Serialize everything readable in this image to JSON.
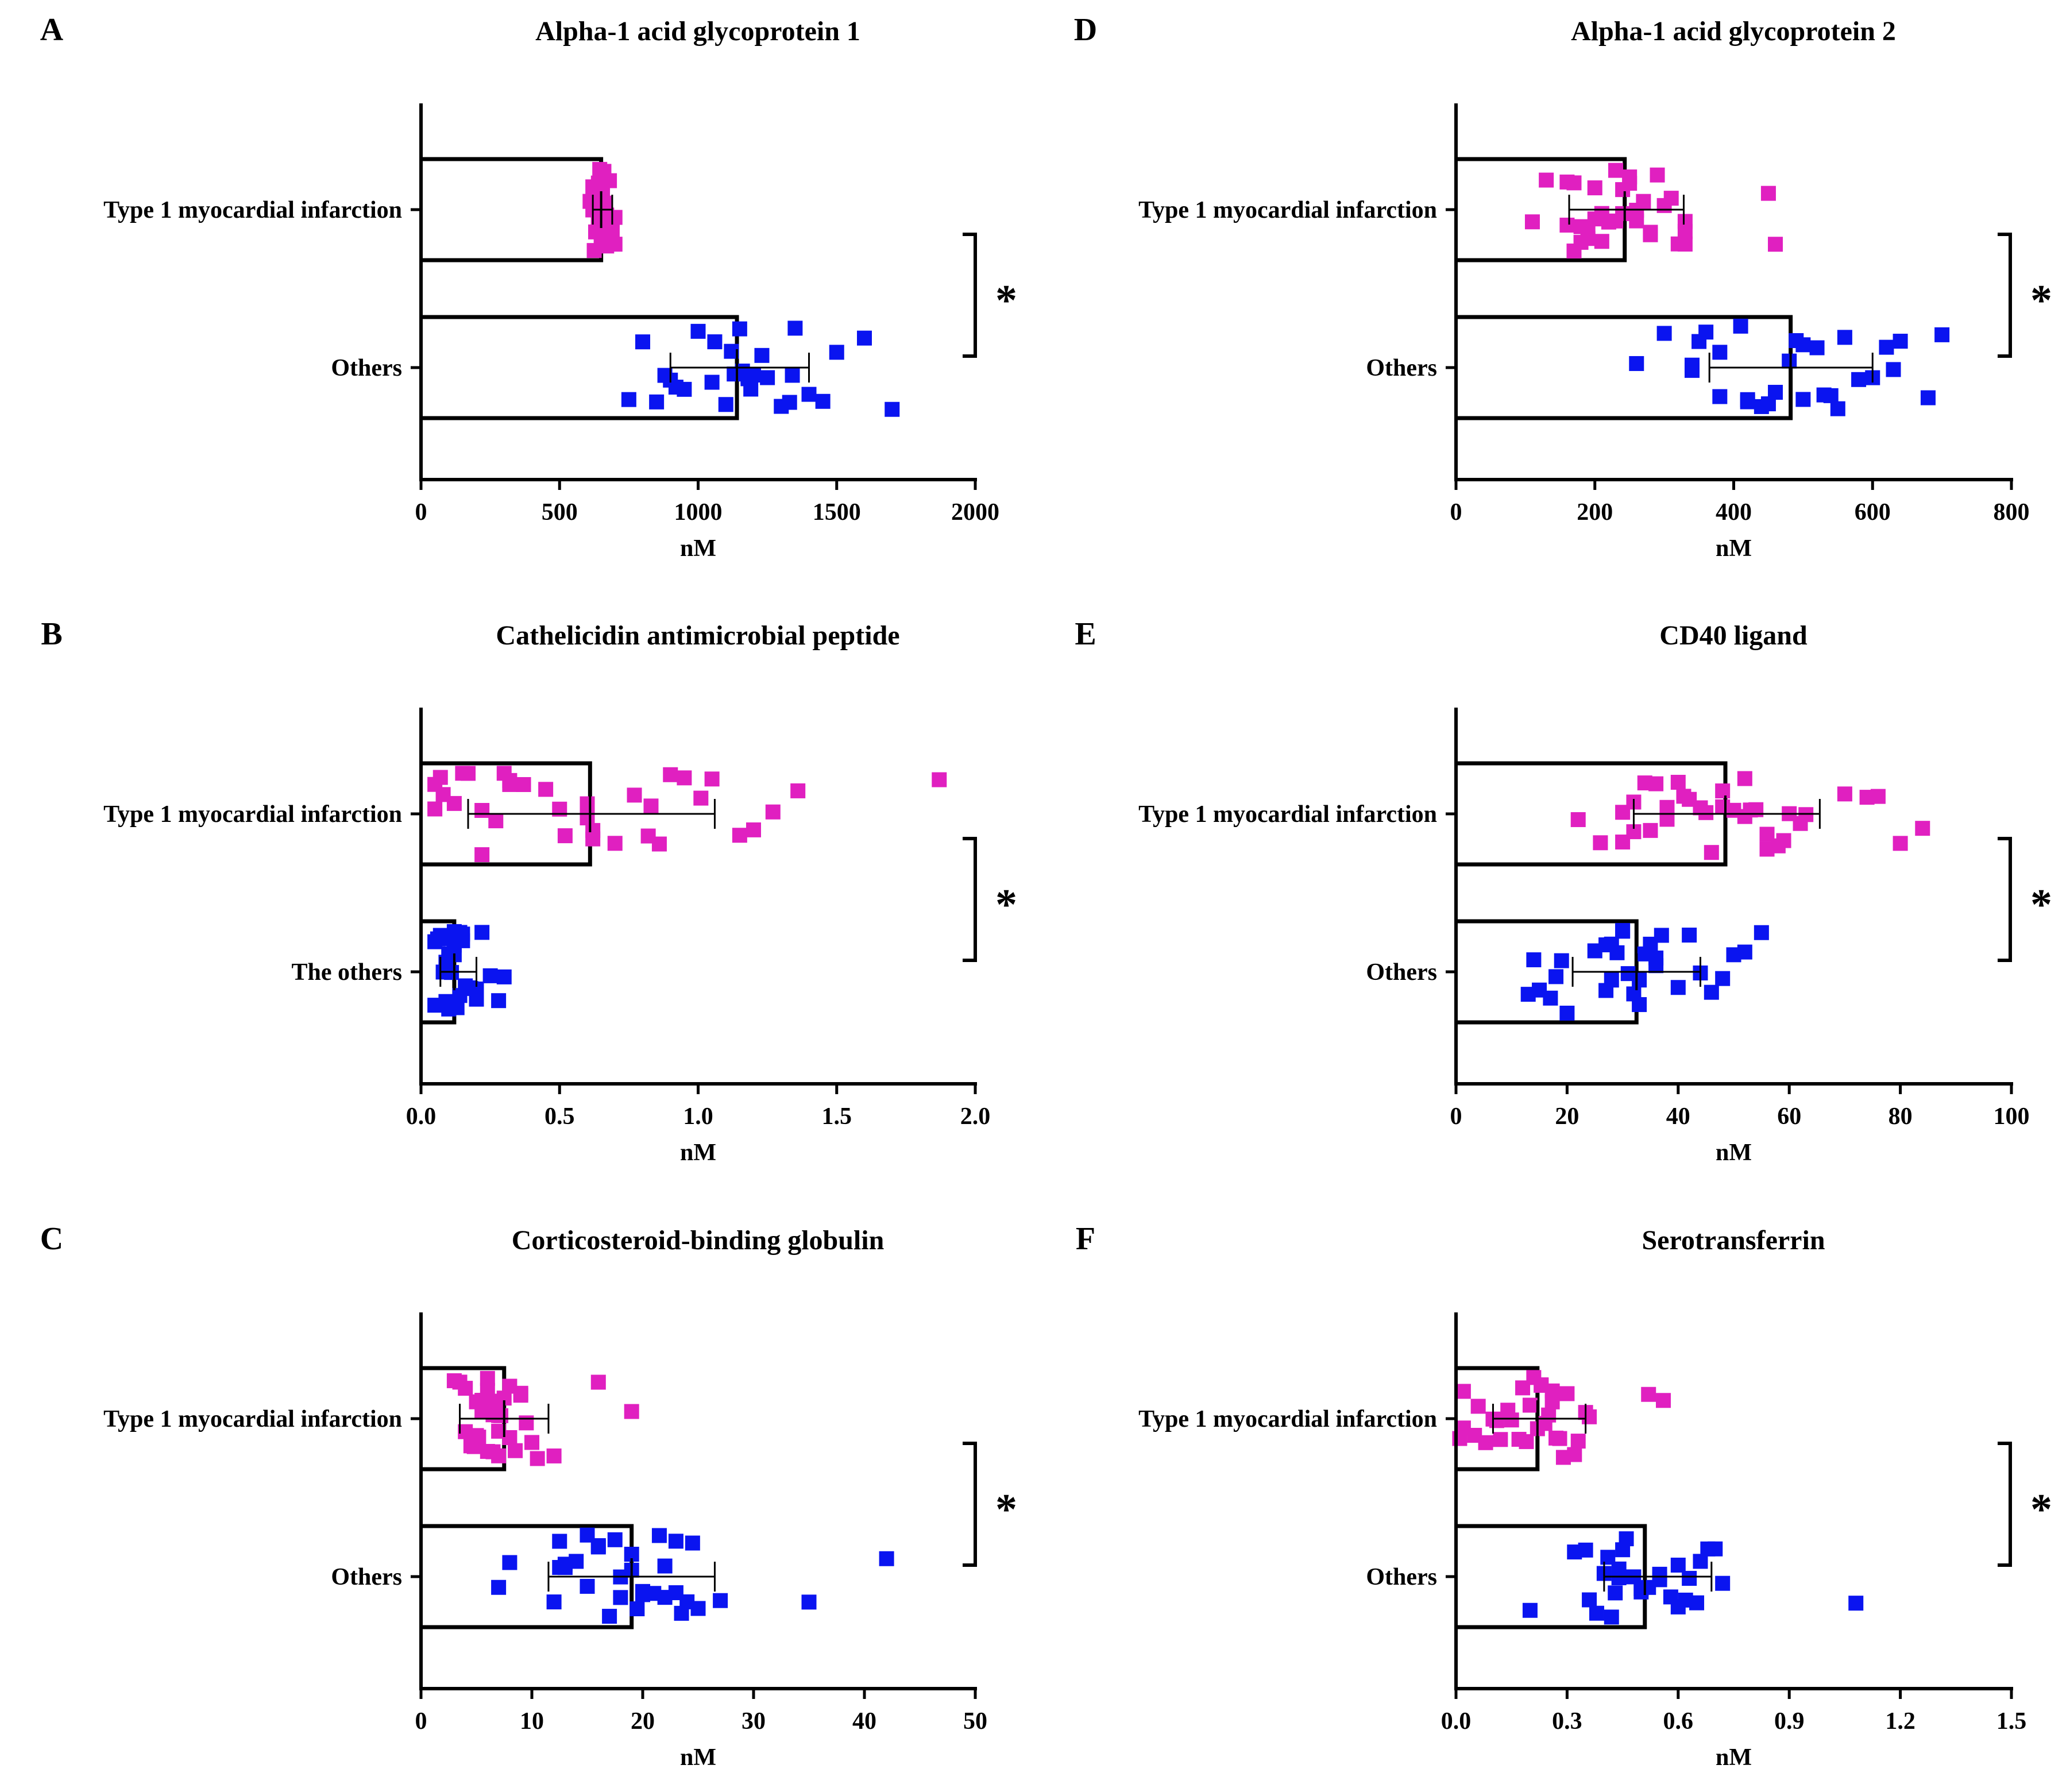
{
  "figure": {
    "colors": {
      "group1": "#e020c0",
      "group2": "#0a14f0",
      "axis": "#000000",
      "bar": "#000000"
    }
  },
  "chart_data": [
    {
      "panel": "A",
      "type": "bar",
      "orientation": "horizontal",
      "title": "Alpha-1 acid glycoprotein 1",
      "xlabel": "nM",
      "xlim": [
        0,
        2000
      ],
      "xticks": [
        "0",
        "500",
        "1000",
        "1500",
        "2000"
      ],
      "xtick_values": [
        0,
        500,
        1000,
        1500,
        2000
      ],
      "significance": "*",
      "groups": [
        {
          "label": "Type 1 myocardial infarction",
          "color": "#e020c0",
          "mean": 650,
          "sd": [
            620,
            690
          ],
          "points": [
            640,
            660,
            670,
            650,
            630,
            680,
            690,
            620,
            660,
            650,
            645,
            700,
            640,
            610,
            670,
            655,
            665,
            635,
            625,
            675,
            685,
            650,
            660,
            640,
            670,
            620,
            630,
            680,
            700,
            655
          ]
        },
        {
          "label": "Others",
          "color": "#0a14f0",
          "mean": 1140,
          "sd": [
            900,
            1400
          ],
          "points": [
            1200,
            1150,
            1230,
            750,
            800,
            850,
            900,
            950,
            1000,
            1050,
            1100,
            1130,
            1160,
            1180,
            1250,
            1300,
            1330,
            1350,
            1400,
            1450,
            1500,
            1600,
            1700,
            880,
            920,
            1180,
            1190,
            1340,
            1120,
            1060
          ]
        }
      ]
    },
    {
      "panel": "B",
      "type": "bar",
      "orientation": "horizontal",
      "title": "Cathelicidin antimicrobial peptide",
      "xlabel": "nM",
      "xlim": [
        0,
        2
      ],
      "xticks": [
        "0.0",
        "0.5",
        "1.0",
        "1.5",
        "2.0"
      ],
      "xtick_values": [
        0,
        0.5,
        1,
        1.5,
        2
      ],
      "significance": "*",
      "groups": [
        {
          "label": "Type 1 myocardial infarction",
          "color": "#e020c0",
          "mean": 0.61,
          "sd": [
            0.17,
            1.06
          ],
          "points": [
            0.08,
            0.22,
            0.32,
            0.5,
            0.62,
            0.83,
            1.01,
            0.05,
            0.12,
            0.22,
            0.3,
            0.45,
            0.6,
            0.7,
            0.82,
            0.9,
            1.05,
            1.15,
            1.27,
            1.36,
            1.87,
            0.07,
            0.17,
            0.27,
            0.37,
            0.52,
            0.62,
            0.77,
            0.95,
            1.2,
            0.05,
            0.15,
            0.32,
            0.6,
            0.86
          ]
        },
        {
          "label": "The others",
          "color": "#0a14f0",
          "mean": 0.12,
          "sd": [
            0.07,
            0.2
          ],
          "points": [
            0.05,
            0.08,
            0.1,
            0.12,
            0.15,
            0.18,
            0.2,
            0.22,
            0.25,
            0.28,
            0.3,
            0.06,
            0.09,
            0.11,
            0.13,
            0.16,
            0.08,
            0.1,
            0.12,
            0.14,
            0.2,
            0.05,
            0.07,
            0.09,
            0.11,
            0.15,
            0.17,
            0.1,
            0.12,
            0.14
          ]
        }
      ]
    },
    {
      "panel": "C",
      "type": "bar",
      "orientation": "horizontal",
      "title": "Corticosteroid-binding globulin",
      "xlabel": "nM",
      "xlim": [
        0,
        50
      ],
      "xticks": [
        "0",
        "10",
        "20",
        "30",
        "40",
        "50"
      ],
      "xtick_values": [
        0,
        10,
        20,
        30,
        40,
        50
      ],
      "significance": "*",
      "groups": [
        {
          "label": "Type 1 myocardial infarction",
          "color": "#e020c0",
          "mean": 7.5,
          "sd": [
            3.5,
            11.5
          ],
          "points": [
            3,
            4,
            5,
            6,
            7,
            8,
            9,
            10,
            12,
            16,
            19,
            3.5,
            4.5,
            5.5,
            6.5,
            7.5,
            8.5,
            9.5,
            6,
            7,
            5,
            4,
            6.5,
            8,
            7,
            5.5,
            6,
            7.2,
            6.8,
            5.2,
            4.8,
            9,
            10.5
          ]
        },
        {
          "label": "Others",
          "color": "#0a14f0",
          "mean": 19,
          "sd": [
            11.5,
            26.5
          ],
          "points": [
            7,
            8,
            12,
            13,
            14,
            15,
            16,
            17,
            18,
            19,
            20,
            21,
            22,
            23,
            24,
            25,
            27,
            35,
            42,
            12.5,
            13,
            19,
            20,
            22,
            23,
            24.5,
            12.5,
            15,
            17.5,
            19.5,
            21.5,
            23.5,
            18,
            16
          ]
        }
      ]
    },
    {
      "panel": "D",
      "type": "bar",
      "orientation": "horizontal",
      "title": "Alpha-1 acid glycoprotein 2",
      "xlabel": "nM",
      "xlim": [
        0,
        800
      ],
      "xticks": [
        "0",
        "200",
        "400",
        "600",
        "800"
      ],
      "xtick_values": [
        0,
        200,
        400,
        600,
        800
      ],
      "significance": "*",
      "groups": [
        {
          "label": "Type 1 myocardial infarction",
          "color": "#e020c0",
          "mean": 243,
          "sd": [
            163,
            328
          ],
          "points": [
            110,
            130,
            160,
            170,
            180,
            190,
            200,
            210,
            220,
            230,
            240,
            250,
            260,
            270,
            280,
            290,
            300,
            320,
            330,
            450,
            460,
            170,
            200,
            230,
            260,
            280,
            330,
            160,
            180,
            210,
            250,
            310,
            330,
            190,
            240
          ]
        },
        {
          "label": "Others",
          "color": "#0a14f0",
          "mean": 482,
          "sd": [
            365,
            600
          ],
          "points": [
            260,
            300,
            340,
            360,
            380,
            420,
            440,
            460,
            480,
            500,
            520,
            540,
            560,
            580,
            600,
            620,
            640,
            680,
            700,
            340,
            380,
            450,
            500,
            530,
            350,
            420,
            490,
            550,
            630,
            410
          ]
        }
      ]
    },
    {
      "panel": "E",
      "type": "bar",
      "orientation": "horizontal",
      "title": "CD40 ligand",
      "xlabel": "nM",
      "xlim": [
        0,
        100
      ],
      "xticks": [
        "0",
        "20",
        "40",
        "60",
        "80",
        "100"
      ],
      "xtick_values": [
        0,
        20,
        40,
        60,
        80,
        100
      ],
      "significance": "*",
      "groups": [
        {
          "label": "Type 1 myocardial infarction",
          "color": "#e020c0",
          "mean": 48.5,
          "sd": [
            32,
            65.5
          ],
          "points": [
            22,
            26,
            30,
            32,
            34,
            36,
            38,
            40,
            42,
            44,
            46,
            48,
            50,
            52,
            54,
            56,
            58,
            60,
            62,
            70,
            74,
            76,
            80,
            84,
            32,
            41,
            45,
            53,
            59,
            30,
            35,
            38,
            48,
            52,
            56,
            63
          ]
        },
        {
          "label": "Others",
          "color": "#0a14f0",
          "mean": 32.5,
          "sd": [
            21,
            44
          ],
          "points": [
            13,
            15,
            17,
            19,
            20,
            25,
            27,
            28,
            29,
            30,
            31,
            32,
            33,
            34,
            35,
            36,
            37,
            40,
            42,
            44,
            46,
            48,
            50,
            52,
            55,
            28,
            33,
            14,
            18,
            36,
            30,
            27
          ]
        }
      ]
    },
    {
      "panel": "F",
      "type": "bar",
      "orientation": "horizontal",
      "title": "Serotransferrin",
      "xlabel": "nM",
      "xlim": [
        0,
        1.5
      ],
      "xticks": [
        "0.0",
        "0.3",
        "0.6",
        "0.9",
        "1.2",
        "1.5"
      ],
      "xtick_values": [
        0,
        0.3,
        0.6,
        0.9,
        1.2,
        1.5
      ],
      "significance": "*",
      "groups": [
        {
          "label": "Type 1 myocardial infarction",
          "color": "#e020c0",
          "mean": 0.22,
          "sd": [
            0.1,
            0.35
          ],
          "points": [
            0.01,
            0.02,
            0.05,
            0.08,
            0.1,
            0.12,
            0.15,
            0.18,
            0.2,
            0.22,
            0.24,
            0.26,
            0.28,
            0.3,
            0.32,
            0.35,
            0.36,
            0.52,
            0.56,
            0.02,
            0.06,
            0.14,
            0.19,
            0.23,
            0.27,
            0.33,
            0.25,
            0.21,
            0.17,
            0.11,
            0.29,
            0.23,
            0.26
          ]
        },
        {
          "label": "Others",
          "color": "#0a14f0",
          "mean": 0.51,
          "sd": [
            0.4,
            0.69
          ],
          "points": [
            0.2,
            0.32,
            0.35,
            0.38,
            0.4,
            0.42,
            0.44,
            0.46,
            0.48,
            0.5,
            0.52,
            0.55,
            0.58,
            0.6,
            0.62,
            0.65,
            0.68,
            0.7,
            0.72,
            1.08,
            0.43,
            0.45,
            0.36,
            0.63,
            0.55,
            0.44,
            0.6,
            0.66,
            0.41,
            0.5
          ]
        }
      ]
    }
  ]
}
